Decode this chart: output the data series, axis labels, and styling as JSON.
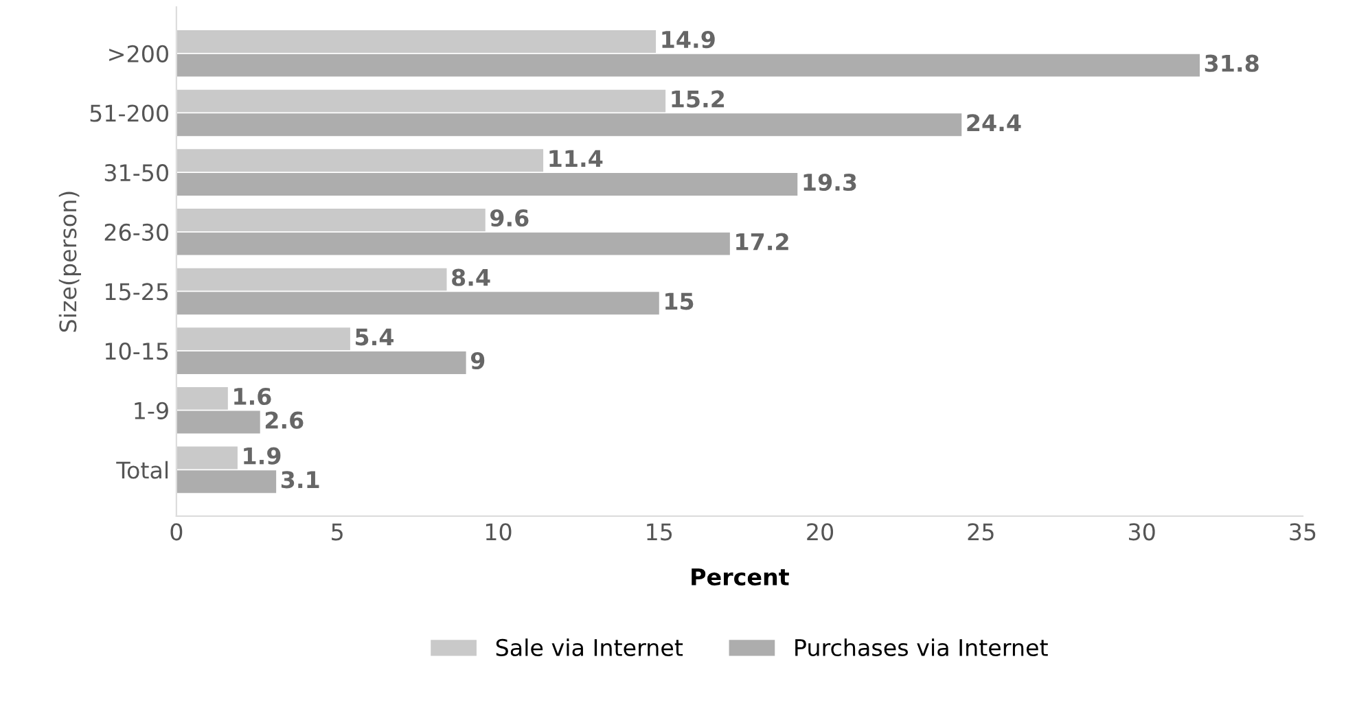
{
  "chart_data": {
    "type": "bar",
    "orientation": "horizontal",
    "xlabel": "Percent",
    "ylabel": "Size(person)",
    "categories": [
      ">200",
      "51-200",
      "31-50",
      "26-30",
      "15-25",
      "10-15",
      "1-9",
      "Total"
    ],
    "series": [
      {
        "name": "Sale via Internet",
        "color": "#c9c9c9",
        "values": [
          14.9,
          15.2,
          11.4,
          9.6,
          8.4,
          5.4,
          1.6,
          1.9
        ]
      },
      {
        "name": "Purchases via Internet",
        "color": "#adadad",
        "values": [
          31.8,
          24.4,
          19.3,
          17.2,
          15,
          9,
          2.6,
          3.1
        ]
      }
    ],
    "xlim": [
      0,
      35
    ],
    "xticks": [
      0,
      5,
      10,
      15,
      20,
      25,
      30,
      35
    ],
    "data_labels": true,
    "legend": "bottom",
    "grid": false
  }
}
